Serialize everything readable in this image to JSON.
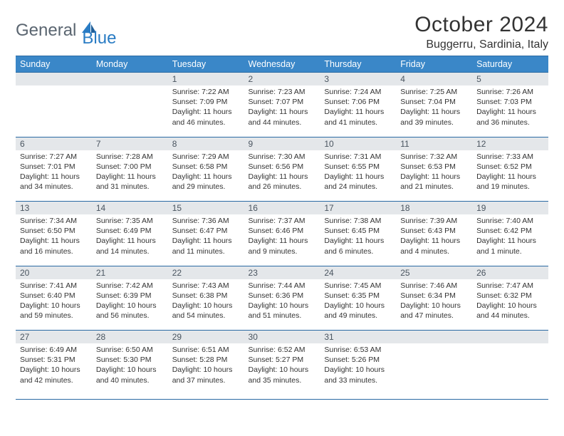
{
  "brand": {
    "general": "General",
    "blue": "Blue"
  },
  "header": {
    "month_title": "October 2024",
    "location": "Buggerru, Sardinia, Italy"
  },
  "colors": {
    "header_bg": "#3a87c8",
    "header_border": "#2a6aa3",
    "daynum_bg": "#e4e7ea",
    "daynum_text": "#4a5560",
    "body_text": "#333333",
    "logo_gray": "#5a6570",
    "logo_blue": "#2a7cc4",
    "page_bg": "#ffffff"
  },
  "typography": {
    "month_title_size_pt": 22,
    "location_size_pt": 12,
    "weekday_size_pt": 9.5,
    "daynum_size_pt": 9,
    "cell_body_size_pt": 8
  },
  "weekdays": [
    "Sunday",
    "Monday",
    "Tuesday",
    "Wednesday",
    "Thursday",
    "Friday",
    "Saturday"
  ],
  "leading_blanks": 2,
  "days": [
    {
      "n": 1,
      "sunrise": "7:22 AM",
      "sunset": "7:09 PM",
      "daylight": "11 hours and 46 minutes."
    },
    {
      "n": 2,
      "sunrise": "7:23 AM",
      "sunset": "7:07 PM",
      "daylight": "11 hours and 44 minutes."
    },
    {
      "n": 3,
      "sunrise": "7:24 AM",
      "sunset": "7:06 PM",
      "daylight": "11 hours and 41 minutes."
    },
    {
      "n": 4,
      "sunrise": "7:25 AM",
      "sunset": "7:04 PM",
      "daylight": "11 hours and 39 minutes."
    },
    {
      "n": 5,
      "sunrise": "7:26 AM",
      "sunset": "7:03 PM",
      "daylight": "11 hours and 36 minutes."
    },
    {
      "n": 6,
      "sunrise": "7:27 AM",
      "sunset": "7:01 PM",
      "daylight": "11 hours and 34 minutes."
    },
    {
      "n": 7,
      "sunrise": "7:28 AM",
      "sunset": "7:00 PM",
      "daylight": "11 hours and 31 minutes."
    },
    {
      "n": 8,
      "sunrise": "7:29 AM",
      "sunset": "6:58 PM",
      "daylight": "11 hours and 29 minutes."
    },
    {
      "n": 9,
      "sunrise": "7:30 AM",
      "sunset": "6:56 PM",
      "daylight": "11 hours and 26 minutes."
    },
    {
      "n": 10,
      "sunrise": "7:31 AM",
      "sunset": "6:55 PM",
      "daylight": "11 hours and 24 minutes."
    },
    {
      "n": 11,
      "sunrise": "7:32 AM",
      "sunset": "6:53 PM",
      "daylight": "11 hours and 21 minutes."
    },
    {
      "n": 12,
      "sunrise": "7:33 AM",
      "sunset": "6:52 PM",
      "daylight": "11 hours and 19 minutes."
    },
    {
      "n": 13,
      "sunrise": "7:34 AM",
      "sunset": "6:50 PM",
      "daylight": "11 hours and 16 minutes."
    },
    {
      "n": 14,
      "sunrise": "7:35 AM",
      "sunset": "6:49 PM",
      "daylight": "11 hours and 14 minutes."
    },
    {
      "n": 15,
      "sunrise": "7:36 AM",
      "sunset": "6:47 PM",
      "daylight": "11 hours and 11 minutes."
    },
    {
      "n": 16,
      "sunrise": "7:37 AM",
      "sunset": "6:46 PM",
      "daylight": "11 hours and 9 minutes."
    },
    {
      "n": 17,
      "sunrise": "7:38 AM",
      "sunset": "6:45 PM",
      "daylight": "11 hours and 6 minutes."
    },
    {
      "n": 18,
      "sunrise": "7:39 AM",
      "sunset": "6:43 PM",
      "daylight": "11 hours and 4 minutes."
    },
    {
      "n": 19,
      "sunrise": "7:40 AM",
      "sunset": "6:42 PM",
      "daylight": "11 hours and 1 minute."
    },
    {
      "n": 20,
      "sunrise": "7:41 AM",
      "sunset": "6:40 PM",
      "daylight": "10 hours and 59 minutes."
    },
    {
      "n": 21,
      "sunrise": "7:42 AM",
      "sunset": "6:39 PM",
      "daylight": "10 hours and 56 minutes."
    },
    {
      "n": 22,
      "sunrise": "7:43 AM",
      "sunset": "6:38 PM",
      "daylight": "10 hours and 54 minutes."
    },
    {
      "n": 23,
      "sunrise": "7:44 AM",
      "sunset": "6:36 PM",
      "daylight": "10 hours and 51 minutes."
    },
    {
      "n": 24,
      "sunrise": "7:45 AM",
      "sunset": "6:35 PM",
      "daylight": "10 hours and 49 minutes."
    },
    {
      "n": 25,
      "sunrise": "7:46 AM",
      "sunset": "6:34 PM",
      "daylight": "10 hours and 47 minutes."
    },
    {
      "n": 26,
      "sunrise": "7:47 AM",
      "sunset": "6:32 PM",
      "daylight": "10 hours and 44 minutes."
    },
    {
      "n": 27,
      "sunrise": "6:49 AM",
      "sunset": "5:31 PM",
      "daylight": "10 hours and 42 minutes."
    },
    {
      "n": 28,
      "sunrise": "6:50 AM",
      "sunset": "5:30 PM",
      "daylight": "10 hours and 40 minutes."
    },
    {
      "n": 29,
      "sunrise": "6:51 AM",
      "sunset": "5:28 PM",
      "daylight": "10 hours and 37 minutes."
    },
    {
      "n": 30,
      "sunrise": "6:52 AM",
      "sunset": "5:27 PM",
      "daylight": "10 hours and 35 minutes."
    },
    {
      "n": 31,
      "sunrise": "6:53 AM",
      "sunset": "5:26 PM",
      "daylight": "10 hours and 33 minutes."
    }
  ],
  "labels": {
    "sunrise": "Sunrise: ",
    "sunset": "Sunset: ",
    "daylight": "Daylight: "
  }
}
